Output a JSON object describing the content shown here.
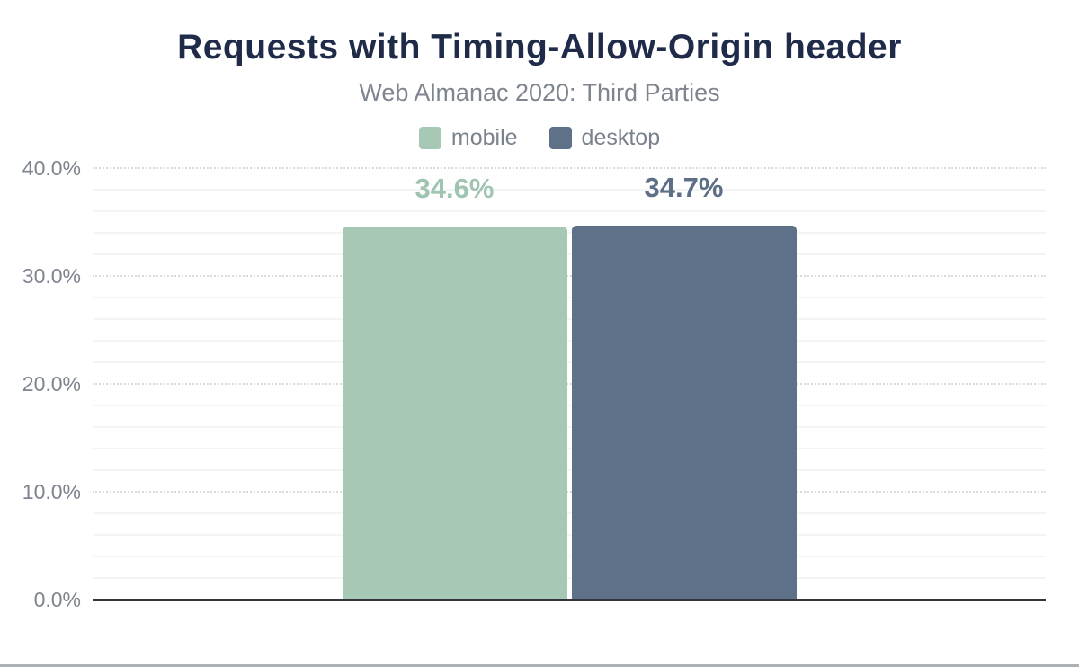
{
  "chart_data": {
    "type": "bar",
    "title": "Requests with Timing-Allow-Origin header",
    "subtitle": "Web Almanac 2020: Third Parties",
    "legend_position": "top",
    "legend": [
      {
        "label": "mobile",
        "color": "#a6c8b4"
      },
      {
        "label": "desktop",
        "color": "#5f7189"
      }
    ],
    "series": [
      {
        "name": "mobile",
        "value": 34.6,
        "label": "34.6%",
        "color": "#a6c8b4",
        "label_color": "#9fc4b0"
      },
      {
        "name": "desktop",
        "value": 34.7,
        "label": "34.7%",
        "color": "#5f7189",
        "label_color": "#5d6f87"
      }
    ],
    "xlabel": "",
    "ylabel": "",
    "ylim": [
      0,
      40
    ],
    "yticks": [
      {
        "value": 0,
        "label": "0.0%"
      },
      {
        "value": 10,
        "label": "10.0%"
      },
      {
        "value": 20,
        "label": "20.0%"
      },
      {
        "value": 30,
        "label": "30.0%"
      },
      {
        "value": 40,
        "label": "40.0%"
      }
    ],
    "ytick_step": 10,
    "minor_grid_step": 2,
    "grid": true
  },
  "colors": {
    "title": "#1f2b49",
    "subtitle": "#7e858f",
    "tick_label": "#7e858f",
    "legend_label": "#7b828c",
    "axis": "#32363b",
    "major_grid": "#dadada",
    "minor_grid": "#f4f4f4",
    "bottom_bar": "#aeb1b6",
    "background": "#ffffff"
  }
}
